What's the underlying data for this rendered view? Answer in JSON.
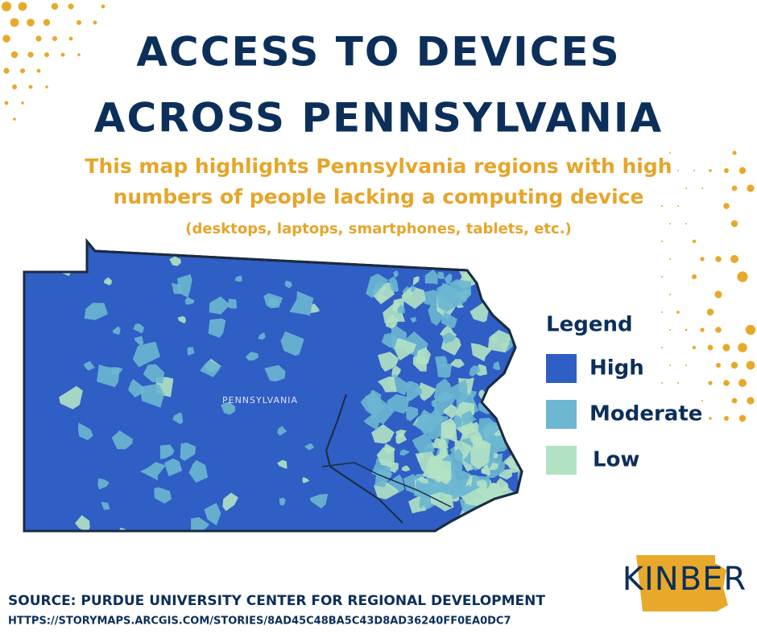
{
  "header": {
    "title": [
      "ACCESS TO DEVICES",
      "ACROSS PENNSYLVANIA"
    ],
    "subtitle": [
      "This map highlights Pennsylvania regions with high",
      "numbers of people lacking a computing device"
    ],
    "note": "(desktops, laptops, smartphones, tablets, etc.)"
  },
  "map": {
    "label": "PENNSYLVANIA"
  },
  "legend": {
    "title": "Legend",
    "items": [
      {
        "label": "High",
        "color": "#2f5ec4"
      },
      {
        "label": "Moderate",
        "color": "#6cb7d2"
      },
      {
        "label": "Low",
        "color": "#b2e2c4"
      }
    ]
  },
  "footer": {
    "source": "SOURCE: PURDUE UNIVERSITY CENTER FOR REGIONAL DEVELOPMENT",
    "url": "HTTPS://STORYMAPS.ARCGIS.COM/STORIES/8AD45C48BA5C43D8AD36240FF0EA0DC7",
    "logo": "KINBER"
  }
}
